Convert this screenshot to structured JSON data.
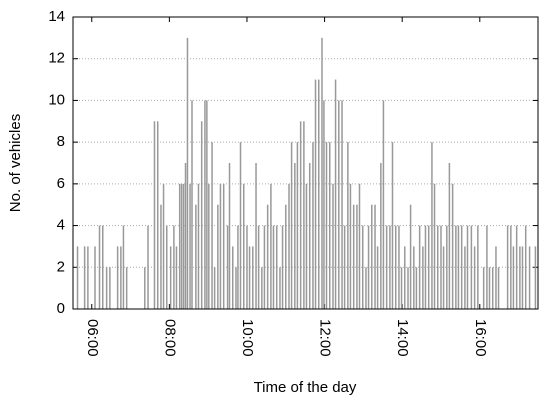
{
  "chart_data": {
    "type": "bar",
    "x_label": "Time of the day",
    "y_label": "No. of vehicles",
    "x": [
      338,
      349,
      354,
      365,
      372,
      377,
      383,
      388,
      400,
      405,
      409,
      414,
      442,
      447,
      457,
      462,
      467,
      471,
      476,
      482,
      487,
      491,
      496,
      499,
      502,
      505,
      508,
      512,
      515,
      521,
      525,
      530,
      535,
      538,
      541,
      546,
      550,
      555,
      559,
      564,
      570,
      573,
      578,
      583,
      586,
      590,
      595,
      600,
      604,
      609,
      614,
      618,
      623,
      627,
      632,
      637,
      641,
      646,
      651,
      655,
      660,
      665,
      669,
      674,
      678,
      683,
      688,
      692,
      697,
      702,
      706,
      711,
      716,
      719,
      723,
      728,
      733,
      737,
      742,
      747,
      751,
      756,
      760,
      765,
      770,
      774,
      779,
      784,
      788,
      793,
      798,
      802,
      807,
      811,
      816,
      821,
      825,
      830,
      835,
      839,
      844,
      849,
      853,
      858,
      862,
      867,
      872,
      876,
      881,
      886,
      890,
      895,
      900,
      904,
      909,
      913,
      918,
      923,
      927,
      932,
      937,
      941,
      947,
      952,
      957,
      966,
      971,
      975,
      980,
      985,
      989,
      1003,
      1008,
      1012,
      1017,
      1022,
      1026,
      1031,
      1037,
      1046
    ],
    "values": [
      3,
      3,
      3,
      3,
      4,
      4,
      2,
      2,
      3,
      3,
      4,
      2,
      2,
      4,
      9,
      9,
      5,
      6,
      4,
      3,
      4,
      3,
      6,
      6,
      6,
      7,
      13,
      6,
      10,
      5,
      6,
      9,
      10,
      10,
      6,
      8,
      2,
      5,
      6,
      6,
      4,
      7,
      3,
      2,
      4,
      8,
      6,
      4,
      3,
      3,
      7,
      4,
      2,
      4,
      5,
      6,
      4,
      4,
      2,
      4,
      5,
      6,
      8,
      7,
      8,
      9,
      9,
      6,
      7,
      8,
      11,
      11,
      13,
      10,
      8,
      8,
      6,
      11,
      10,
      10,
      4,
      8,
      6,
      5,
      5,
      6,
      4,
      2,
      4,
      5,
      5,
      3,
      7,
      10,
      4,
      4,
      8,
      4,
      4,
      2,
      3,
      2,
      5,
      3,
      2,
      4,
      3,
      4,
      4,
      8,
      6,
      4,
      4,
      3,
      4,
      7,
      6,
      4,
      4,
      4,
      3,
      4,
      4,
      3,
      4,
      2,
      4,
      2,
      2,
      3,
      2,
      4,
      4,
      3,
      4,
      3,
      3,
      4,
      3,
      3
    ],
    "color": "#999999",
    "xlim": [
      331,
      1050
    ],
    "xticks": [
      {
        "value": 360,
        "label": "06:00"
      },
      {
        "value": 480,
        "label": "08:00"
      },
      {
        "value": 600,
        "label": "10:00"
      },
      {
        "value": 720,
        "label": "12:00"
      },
      {
        "value": 840,
        "label": "14:00"
      },
      {
        "value": 960,
        "label": "16:00"
      }
    ],
    "ylim": [
      0,
      14
    ],
    "yticks": [
      0,
      2,
      4,
      6,
      8,
      10,
      12,
      14
    ],
    "grid": true
  }
}
